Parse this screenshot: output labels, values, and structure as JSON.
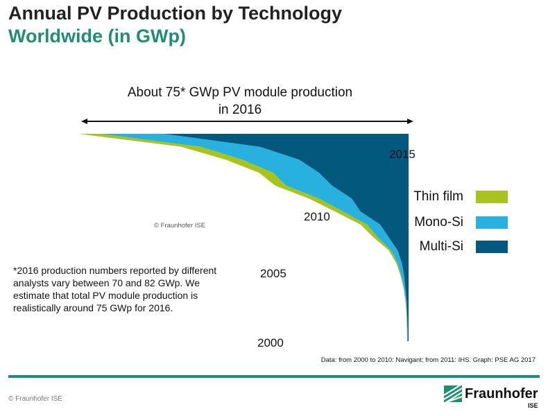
{
  "header": {
    "title": "Annual PV Production by Technology",
    "subtitle": "Worldwide (in GWp)"
  },
  "chart_data": {
    "type": "area",
    "orientation": "vertical-funnel",
    "annotation": [
      "About 75* GWp PV module production",
      "in 2016"
    ],
    "year_labels": [
      "2000",
      "2005",
      "2010",
      "2015"
    ],
    "legend_placement": "right",
    "series": [
      {
        "name": "Thin film",
        "color": "#a8c41c"
      },
      {
        "name": "Mono-Si",
        "color": "#28b0de"
      },
      {
        "name": "Multi-Si",
        "color": "#03587d"
      }
    ],
    "x": [
      2000,
      2001,
      2002,
      2003,
      2004,
      2005,
      2006,
      2007,
      2008,
      2009,
      2010,
      2011,
      2012,
      2013,
      2014,
      2015,
      2016
    ],
    "stack": {
      "thin_film": [
        0.0,
        0.1,
        0.1,
        0.1,
        0.1,
        0.2,
        0.3,
        0.5,
        1.0,
        1.5,
        1.8,
        2.3,
        2.5,
        3.2,
        3.8,
        4.5,
        5.0
      ],
      "mono_si": [
        0.1,
        0.1,
        0.1,
        0.2,
        0.3,
        0.6,
        1.0,
        1.5,
        2.5,
        3.0,
        4.0,
        7.5,
        10.5,
        10.5,
        13.0,
        13.5,
        14.5
      ],
      "multi_si": [
        0.2,
        0.2,
        0.3,
        0.4,
        0.7,
        1.0,
        1.5,
        2.5,
        4.5,
        6.5,
        11.0,
        13.0,
        17.5,
        20.5,
        25.0,
        34.0,
        56.0
      ]
    },
    "ylabel": "",
    "xlabel": ""
  },
  "footnote": "*2016 production numbers reported by different analysts vary between 70 and 82 GWp. We estimate that total PV module production is realistically around 75 GWp for 2016.",
  "source": "Data: from 2000 to 2010: Navigant; from 2011: IHS. Graph: PSE AG 2017",
  "chart_copyright": "© Fraunhofer ISE",
  "footer": {
    "copyright": "© Fraunhofer ISE",
    "logo_text": "Fraunhofer",
    "logo_sub": "ISE",
    "accent_color": "#1f8f74"
  }
}
